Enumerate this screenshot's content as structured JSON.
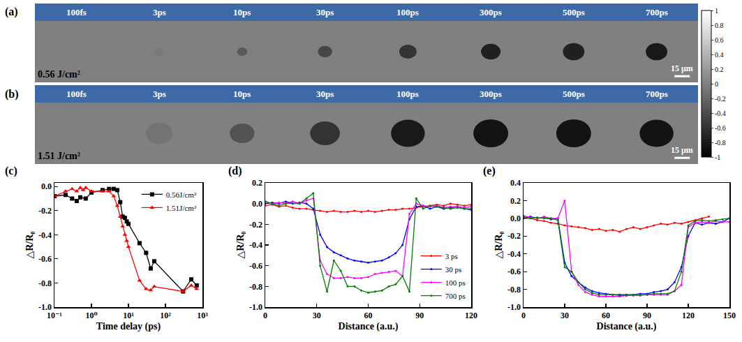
{
  "chart_data": [
    {
      "type": "image_series",
      "panel": "(a)",
      "fluence": "0.56 J/cm²",
      "frames": [
        {
          "label": "100fs",
          "diameter": 0,
          "value": 0
        },
        {
          "label": "3ps",
          "diameter": 10,
          "value": -0.05
        },
        {
          "label": "10ps",
          "diameter": 10,
          "value": -0.3
        },
        {
          "label": "30ps",
          "diameter": 14,
          "value": -0.45
        },
        {
          "label": "100ps",
          "diameter": 17,
          "value": -0.6
        },
        {
          "label": "300ps",
          "diameter": 19,
          "value": -0.75
        },
        {
          "label": "500ps",
          "diameter": 21,
          "value": -0.75
        },
        {
          "label": "700ps",
          "diameter": 21,
          "value": -0.8
        }
      ],
      "scale_bar": {
        "value": 15,
        "label": "15 μm"
      },
      "colorbar": {
        "range": [
          -1,
          1
        ],
        "ticks": [
          1,
          0.8,
          0.6,
          0.4,
          0.2,
          0,
          -0.2,
          -0.4,
          -0.6,
          -0.8,
          -1
        ]
      }
    },
    {
      "type": "image_series",
      "panel": "(b)",
      "fluence": "1.51 J/cm²",
      "frames": [
        {
          "label": "100fs",
          "diameter": 0,
          "value": 0
        },
        {
          "label": "3ps",
          "diameter": 26,
          "value": -0.1
        },
        {
          "label": "10ps",
          "diameter": 24,
          "value": -0.35
        },
        {
          "label": "30ps",
          "diameter": 29,
          "value": -0.6
        },
        {
          "label": "100ps",
          "diameter": 33,
          "value": -0.8
        },
        {
          "label": "300ps",
          "diameter": 34,
          "value": -0.85
        },
        {
          "label": "500ps",
          "diameter": 34,
          "value": -0.85
        },
        {
          "label": "700ps",
          "diameter": 33,
          "value": -0.85
        }
      ],
      "scale_bar": {
        "value": 15,
        "label": "15 μm"
      }
    },
    {
      "type": "line",
      "panel": "(c)",
      "x_label": "Time delay (ps)",
      "y_label": "△R/R₀",
      "log": "x",
      "xlim": [
        0.1,
        1000
      ],
      "xticks": [
        {
          "value": 0.1,
          "label": "10⁻¹"
        },
        {
          "value": 1,
          "label": "10⁰"
        },
        {
          "value": 10,
          "label": "10¹"
        },
        {
          "value": 100,
          "label": "10²"
        },
        {
          "value": 1000,
          "label": "10³"
        }
      ],
      "ylim": [
        -1,
        0.03
      ],
      "yticks": [
        {
          "value": -1,
          "label": "-1.0"
        },
        -0.8,
        -0.6,
        -0.4,
        -0.2,
        {
          "value": 0,
          "label": "0.0"
        }
      ],
      "legend": "top right",
      "series": [
        {
          "name": "0.56J/cm²",
          "color": "#000000",
          "marker": "square",
          "x": [
            0.1,
            0.2,
            0.3,
            0.4,
            0.5,
            0.7,
            1,
            2,
            3,
            4,
            5,
            6,
            7,
            8,
            9,
            10,
            20,
            30,
            40,
            50,
            300,
            500,
            700
          ],
          "values": [
            -0.08,
            -0.07,
            -0.1,
            -0.12,
            -0.09,
            -0.1,
            -0.05,
            -0.03,
            -0.02,
            -0.02,
            -0.03,
            -0.13,
            -0.25,
            -0.26,
            -0.29,
            -0.31,
            -0.47,
            -0.55,
            -0.68,
            -0.62,
            -0.87,
            -0.77,
            -0.82
          ]
        },
        {
          "name": "1.51J/cm²",
          "color": "#ff0000",
          "marker": "triangle",
          "x": [
            0.1,
            0.2,
            0.3,
            0.4,
            0.5,
            0.6,
            0.7,
            1,
            2,
            3,
            4,
            5,
            6,
            7,
            8,
            9,
            10,
            20,
            30,
            40,
            50,
            300,
            500,
            700
          ],
          "values": [
            -0.08,
            -0.04,
            -0.02,
            -0.04,
            -0.01,
            -0.03,
            -0.01,
            -0.04,
            -0.04,
            -0.04,
            -0.08,
            -0.16,
            -0.25,
            -0.33,
            -0.4,
            -0.45,
            -0.5,
            -0.78,
            -0.85,
            -0.86,
            -0.83,
            -0.87,
            -0.82,
            -0.85
          ]
        }
      ]
    },
    {
      "type": "line",
      "panel": "(d)",
      "x_label": "Distance (a.u.)",
      "y_label": "△R/R₀",
      "xlim": [
        0,
        120
      ],
      "xticks": [
        0,
        30,
        60,
        90,
        120
      ],
      "ylim": [
        -1,
        0.2
      ],
      "yticks": [
        {
          "value": -1,
          "label": "-1.0"
        },
        -0.8,
        -0.6,
        -0.4,
        -0.2,
        {
          "value": 0,
          "label": "0.0"
        },
        0.2
      ],
      "legend": "bottom right",
      "x": [
        0,
        4,
        8,
        12,
        16,
        20,
        24,
        28,
        32,
        36,
        40,
        44,
        48,
        52,
        56,
        60,
        64,
        68,
        72,
        76,
        80,
        84,
        88,
        92,
        96,
        100,
        104,
        108,
        112,
        116,
        120
      ],
      "series": [
        {
          "name": "3 ps",
          "color": "#ff0000",
          "marker": "circle",
          "values": [
            -0.02,
            -0.01,
            -0.03,
            -0.02,
            -0.04,
            -0.05,
            -0.05,
            -0.06,
            -0.07,
            -0.08,
            -0.07,
            -0.08,
            -0.08,
            -0.07,
            -0.08,
            -0.07,
            -0.08,
            -0.07,
            -0.06,
            -0.06,
            -0.05,
            -0.05,
            -0.04,
            -0.03,
            -0.02,
            -0.01,
            -0.02,
            0,
            -0.01,
            -0.02,
            -0.01
          ]
        },
        {
          "name": "30 ps",
          "color": "#0000ff",
          "marker": "circle",
          "values": [
            0,
            0.01,
            0,
            0.02,
            0,
            0.01,
            0,
            -0.05,
            -0.3,
            -0.42,
            -0.47,
            -0.5,
            -0.53,
            -0.55,
            -0.56,
            -0.57,
            -0.56,
            -0.55,
            -0.52,
            -0.48,
            -0.4,
            -0.15,
            -0.03,
            -0.02,
            -0.05,
            -0.03,
            -0.05,
            -0.04,
            -0.03,
            -0.05,
            -0.06
          ]
        },
        {
          "name": "100 ps",
          "color": "#ff00ff",
          "marker": "circle",
          "values": [
            0.02,
            0,
            0.01,
            0,
            0.02,
            0,
            0.03,
            0.05,
            -0.55,
            -0.68,
            -0.72,
            -0.72,
            -0.71,
            -0.72,
            -0.72,
            -0.71,
            -0.68,
            -0.67,
            -0.66,
            -0.65,
            -0.7,
            -0.1,
            0,
            -0.02,
            -0.03,
            -0.02,
            -0.04,
            -0.03,
            -0.03,
            -0.04,
            -0.03
          ]
        },
        {
          "name": "700 ps",
          "color": "#008000",
          "marker": "circle",
          "values": [
            0.02,
            0,
            -0.02,
            0,
            0,
            0,
            0.05,
            0.1,
            -0.6,
            -0.85,
            -0.55,
            -0.65,
            -0.8,
            -0.8,
            -0.84,
            -0.86,
            -0.85,
            -0.84,
            -0.8,
            -0.78,
            -0.7,
            -0.85,
            0.05,
            -0.05,
            -0.02,
            -0.03,
            -0.04,
            -0.05,
            -0.04,
            -0.05,
            -0.05
          ]
        }
      ]
    },
    {
      "type": "line",
      "panel": "(e)",
      "x_label": "Distance (a.u.)",
      "y_label": "△R/R₀",
      "xlim": [
        0,
        150
      ],
      "xticks": [
        0,
        30,
        60,
        90,
        120,
        150
      ],
      "ylim": [
        -1,
        0.4
      ],
      "yticks": [
        {
          "value": -1,
          "label": "-1.0"
        },
        -0.8,
        -0.6,
        -0.4,
        -0.2,
        {
          "value": 0,
          "label": "0.0"
        },
        0.2,
        0.4
      ],
      "x": [
        0,
        5,
        10,
        15,
        20,
        25,
        30,
        35,
        40,
        45,
        50,
        55,
        60,
        65,
        70,
        75,
        80,
        85,
        90,
        95,
        100,
        105,
        110,
        115,
        120,
        125,
        130,
        135,
        140,
        145,
        150
      ],
      "series": [
        {
          "color": "#ff0000",
          "marker": "circle",
          "values": [
            0,
            0,
            -0.02,
            -0.03,
            -0.05,
            -0.06,
            -0.08,
            -0.09,
            -0.1,
            -0.11,
            -0.13,
            -0.12,
            -0.14,
            -0.13,
            -0.15,
            -0.12,
            -0.1,
            -0.12,
            -0.1,
            -0.08,
            -0.06,
            -0.07,
            -0.05,
            -0.06,
            -0.04,
            -0.02,
            0,
            0.02,
            null,
            null,
            null
          ]
        },
        {
          "color": "#0000ff",
          "marker": "circle",
          "values": [
            0,
            0.02,
            0,
            0.01,
            -0.01,
            0,
            -0.5,
            -0.65,
            -0.72,
            -0.78,
            -0.82,
            -0.84,
            -0.85,
            -0.86,
            -0.86,
            -0.86,
            -0.86,
            -0.85,
            -0.85,
            -0.83,
            -0.82,
            -0.8,
            -0.72,
            -0.55,
            -0.2,
            -0.05,
            -0.07,
            -0.05,
            -0.06,
            -0.04,
            0
          ]
        },
        {
          "color": "#ff00ff",
          "marker": "circle",
          "values": [
            0.03,
            0.01,
            0,
            0.02,
            0,
            0,
            0.2,
            -0.6,
            -0.75,
            -0.83,
            -0.86,
            -0.88,
            -0.88,
            -0.88,
            -0.88,
            -0.87,
            -0.87,
            -0.87,
            -0.86,
            -0.86,
            -0.86,
            -0.86,
            -0.82,
            -0.75,
            -0.1,
            -0.05,
            -0.04,
            -0.05,
            -0.03,
            -0.04,
            -0.04
          ]
        },
        {
          "color": "#008000",
          "marker": "circle",
          "values": [
            0.02,
            0,
            0.01,
            0,
            0,
            -0.02,
            -0.55,
            -0.6,
            -0.72,
            -0.8,
            -0.84,
            -0.86,
            -0.86,
            -0.86,
            -0.87,
            -0.87,
            -0.86,
            -0.86,
            -0.86,
            -0.85,
            -0.85,
            -0.85,
            -0.82,
            -0.6,
            -0.08,
            -0.03,
            -0.02,
            -0.03,
            -0.02,
            -0.01,
            0
          ]
        }
      ]
    }
  ]
}
